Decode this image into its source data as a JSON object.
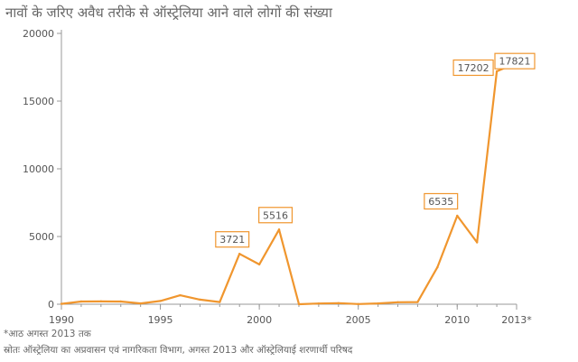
{
  "page": {
    "title": "नावों के जरिए अवैध तरीके से ऑस्ट्रेलिया आने वाले लोगों की संख्या",
    "footnote": "*आठ अगस्त 2013 तक",
    "source": "स्रोतः ऑस्ट्रेलिया का अप्रवासन एवं नागरिकता विभाग, अगस्त 2013 और ऑस्ट्रेलियाई शरणार्थी परिषद"
  },
  "colors": {
    "line": "#F0962E",
    "axis": "#999999",
    "grid": "#BBBBBB",
    "text": "#555555"
  },
  "chart_data": {
    "type": "line",
    "title": "नावों के जरिए अवैध तरीके से ऑस्ट्रेलिया आने वाले लोगों की संख्या",
    "xlabel": "",
    "ylabel": "",
    "xlim": [
      1990,
      2013
    ],
    "ylim": [
      0,
      20000
    ],
    "grid": false,
    "x_ticks": [
      1990,
      1995,
      2000,
      2005,
      2010,
      2013
    ],
    "x_tick_labels": [
      "1990",
      "1995",
      "2000",
      "2005",
      "2010",
      "2013*"
    ],
    "y_ticks": [
      0,
      5000,
      10000,
      15000,
      20000
    ],
    "y_tick_labels": [
      "0",
      "5000",
      "10000",
      "15000",
      "20000"
    ],
    "series": [
      {
        "x": [
          1990,
          1991,
          1992,
          1993,
          1994,
          1995,
          1996,
          1997,
          1998,
          1999,
          2000,
          2001,
          2002,
          2003,
          2004,
          2005,
          2006,
          2007,
          2008,
          2009,
          2010,
          2011,
          2012,
          2013
        ],
        "values": [
          30,
          200,
          210,
          200,
          60,
          240,
          660,
          340,
          160,
          3721,
          2940,
          5516,
          1,
          53,
          82,
          11,
          60,
          148,
          161,
          2726,
          6535,
          4565,
          17202,
          17821
        ]
      }
    ],
    "annotations": [
      {
        "x": 1999,
        "value": 3721,
        "label": "3721"
      },
      {
        "x": 2001,
        "value": 5516,
        "label": "5516"
      },
      {
        "x": 2010,
        "value": 6535,
        "label": "6535"
      },
      {
        "x": 2012,
        "value": 17202,
        "label": "17202"
      },
      {
        "x": 2013,
        "value": 17821,
        "label": "17821"
      }
    ]
  }
}
